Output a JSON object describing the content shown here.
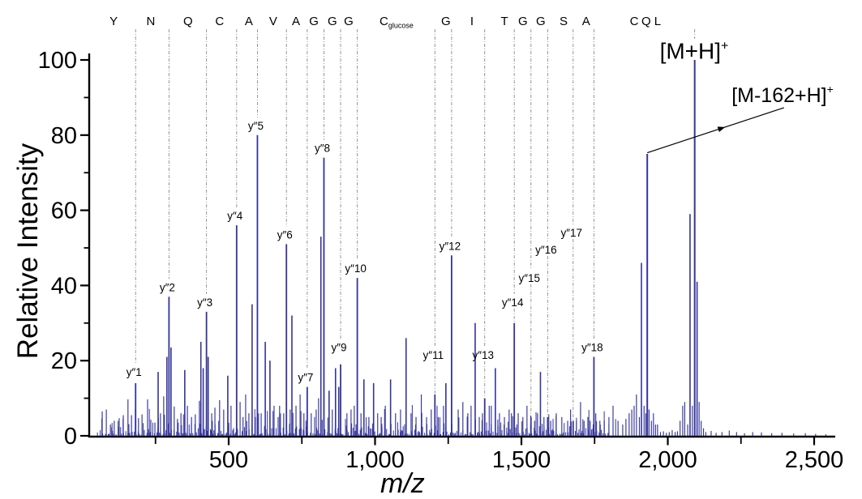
{
  "chart_data": {
    "type": "stick-mass-spectrum",
    "title": "",
    "xlabel": "m/z",
    "ylabel": "Relative Intensity",
    "xlim": [
      23,
      2570
    ],
    "ylim": [
      0,
      100
    ],
    "grid": false,
    "colors": {
      "peak": "#34349c",
      "axis": "#000000",
      "guide": "#8a8a8a",
      "text": "#000000"
    },
    "x_ticks": {
      "major": [
        500,
        1000,
        1500,
        2000,
        2500
      ],
      "major_labels": [
        "500",
        "1,000",
        "1,500",
        "2,000",
        "2,500"
      ],
      "minor": [
        250,
        750,
        1250,
        1750,
        2250
      ]
    },
    "y_ticks": {
      "major": [
        0,
        20,
        40,
        60,
        80,
        100
      ],
      "major_labels": [
        "0",
        "20",
        "40",
        "60",
        "80",
        "100"
      ],
      "minor": [
        10,
        30,
        50,
        70,
        90
      ]
    },
    "sequence": [
      {
        "t": "Y",
        "mz": 107
      },
      {
        "t": "N",
        "mz": 234
      },
      {
        "t": "Q",
        "mz": 361
      },
      {
        "t": "C",
        "mz": 469
      },
      {
        "t": "A",
        "mz": 569
      },
      {
        "t": "V",
        "mz": 652
      },
      {
        "t": "A",
        "mz": 730
      },
      {
        "t": "G",
        "mz": 791
      },
      {
        "t": "G",
        "mz": 854
      },
      {
        "t": "G",
        "mz": 910
      },
      {
        "t": "C",
        "sub": "glucose",
        "mz": 1032
      },
      {
        "t": "G",
        "mz": 1242
      },
      {
        "t": "I",
        "mz": 1331
      },
      {
        "t": "T",
        "mz": 1442
      },
      {
        "t": "G",
        "mz": 1505
      },
      {
        "t": "G",
        "mz": 1566
      },
      {
        "t": "S",
        "mz": 1644
      },
      {
        "t": "A",
        "mz": 1721
      },
      {
        "t": "C",
        "mz": 1885
      },
      {
        "t": "Q",
        "mz": 1926
      },
      {
        "t": "L",
        "mz": 1965
      }
    ],
    "annotated_peaks": [
      {
        "label": "y″1",
        "mz": 182.1,
        "intensity": 14,
        "label_int": 16
      },
      {
        "label": "y″2",
        "mz": 296.1,
        "intensity": 37,
        "label_int": 38.5
      },
      {
        "label": "y″3",
        "mz": 424.2,
        "intensity": 33,
        "label_int": 34.5
      },
      {
        "label": "y″4",
        "mz": 527.2,
        "intensity": 56,
        "label_int": 57.5
      },
      {
        "label": "y″5",
        "mz": 598.2,
        "intensity": 80,
        "label_int": 81.5
      },
      {
        "label": "y″6",
        "mz": 697.3,
        "intensity": 51,
        "label_int": 52.5
      },
      {
        "label": "y″7",
        "mz": 768.3,
        "intensity": 13,
        "label_int": 14.5
      },
      {
        "label": "y″8",
        "mz": 825.4,
        "intensity": 74,
        "label_int": 75.5
      },
      {
        "label": "y″9",
        "mz": 882.4,
        "intensity": 19,
        "label_int": 22.5
      },
      {
        "label": "y″10",
        "mz": 939.4,
        "intensity": 42,
        "label_int": 43.5
      },
      {
        "label": "y″11",
        "mz": 1204.5,
        "intensity": 11,
        "label_int": 20.5
      },
      {
        "label": "y″12",
        "mz": 1261.5,
        "intensity": 48,
        "label_int": 49.5
      },
      {
        "label": "y″13",
        "mz": 1374.6,
        "intensity": 10,
        "label_int": 20.5
      },
      {
        "label": "y″14",
        "mz": 1475.6,
        "intensity": 30,
        "label_int": 34.5
      },
      {
        "label": "y″15",
        "mz": 1532.6,
        "intensity": 5,
        "label_int": 41
      },
      {
        "label": "y″16",
        "mz": 1589.7,
        "intensity": 5,
        "label_int": 48.5
      },
      {
        "label": "y″17",
        "mz": 1676.7,
        "intensity": 4,
        "label_int": 53
      },
      {
        "label": "y″18",
        "mz": 1747.7,
        "intensity": 21,
        "label_int": 22.5
      }
    ],
    "parent_ions": [
      {
        "label_main": "[M+H]",
        "label_sup": "+",
        "mz": 2091.9,
        "intensity": 100,
        "label_center_mz": 2090,
        "label_baseline_int": 100.3,
        "guide_stub": true
      },
      {
        "label_main": "[M-162+H]",
        "label_sup": "+",
        "mz": 1929.9,
        "intensity": 75,
        "label_center_mz": 2392,
        "label_baseline_int": 88.8,
        "guide_stub": false,
        "arrow": {
          "from_mz": 1929.9,
          "from_int": 75.3,
          "to_mz": 2397,
          "to_int": 87.3
        }
      }
    ],
    "background_peaks": [
      [
        68,
        6.5
      ],
      [
        82,
        7
      ],
      [
        96,
        3
      ],
      [
        109,
        4
      ],
      [
        126,
        4.7
      ],
      [
        140,
        5.5
      ],
      [
        156,
        9.7
      ],
      [
        168,
        5.5
      ],
      [
        192,
        4.7
      ],
      [
        204,
        5.7
      ],
      [
        223,
        9.7
      ],
      [
        234,
        4.3
      ],
      [
        248,
        3.5
      ],
      [
        259,
        17
      ],
      [
        267,
        6
      ],
      [
        278,
        10.5
      ],
      [
        289,
        21
      ],
      [
        303,
        23.5
      ],
      [
        314,
        7.8
      ],
      [
        325,
        4.5
      ],
      [
        337,
        6
      ],
      [
        350,
        17.5
      ],
      [
        359,
        8
      ],
      [
        373,
        5
      ],
      [
        386,
        5.7
      ],
      [
        400,
        9.3
      ],
      [
        405,
        25
      ],
      [
        413,
        18
      ],
      [
        430,
        21
      ],
      [
        442,
        6
      ],
      [
        453,
        7.5
      ],
      [
        469,
        9.5
      ],
      [
        483,
        7
      ],
      [
        497,
        16
      ],
      [
        508,
        8
      ],
      [
        539,
        9
      ],
      [
        549,
        5
      ],
      [
        558,
        11
      ],
      [
        569,
        6
      ],
      [
        580,
        35
      ],
      [
        591,
        5
      ],
      [
        611,
        6
      ],
      [
        625,
        25
      ],
      [
        641,
        20
      ],
      [
        655,
        8
      ],
      [
        669,
        5
      ],
      [
        674,
        8
      ],
      [
        688,
        6
      ],
      [
        710,
        7
      ],
      [
        716,
        32
      ],
      [
        730,
        8
      ],
      [
        744,
        11
      ],
      [
        757,
        6
      ],
      [
        782,
        6
      ],
      [
        799,
        7
      ],
      [
        807,
        10
      ],
      [
        815,
        53
      ],
      [
        843,
        12
      ],
      [
        854,
        7
      ],
      [
        865,
        18
      ],
      [
        876,
        13
      ],
      [
        904,
        6
      ],
      [
        918,
        7
      ],
      [
        929,
        8
      ],
      [
        952,
        6
      ],
      [
        962,
        15
      ],
      [
        979,
        5
      ],
      [
        995,
        14
      ],
      [
        1009,
        6
      ],
      [
        1021,
        5
      ],
      [
        1035,
        8
      ],
      [
        1053,
        15
      ],
      [
        1070,
        6
      ],
      [
        1087,
        7
      ],
      [
        1106,
        26
      ],
      [
        1123,
        6
      ],
      [
        1140,
        5
      ],
      [
        1158,
        11
      ],
      [
        1176,
        5
      ],
      [
        1192,
        7
      ],
      [
        1216,
        5
      ],
      [
        1234,
        8
      ],
      [
        1242,
        14
      ],
      [
        1284,
        7
      ],
      [
        1300,
        9
      ],
      [
        1317,
        6
      ],
      [
        1328,
        8
      ],
      [
        1342,
        30
      ],
      [
        1356,
        5
      ],
      [
        1367,
        6
      ],
      [
        1390,
        8
      ],
      [
        1397,
        8
      ],
      [
        1411,
        18
      ],
      [
        1425,
        6
      ],
      [
        1442,
        5
      ],
      [
        1458,
        7
      ],
      [
        1466,
        6
      ],
      [
        1489,
        6
      ],
      [
        1505,
        5
      ],
      [
        1519,
        8
      ],
      [
        1545,
        4
      ],
      [
        1555,
        6
      ],
      [
        1565,
        17
      ],
      [
        1577,
        5
      ],
      [
        1600,
        4
      ],
      [
        1619,
        6
      ],
      [
        1638,
        5
      ],
      [
        1658,
        4
      ],
      [
        1668,
        7
      ],
      [
        1688,
        4
      ],
      [
        1702,
        9
      ],
      [
        1714,
        4
      ],
      [
        1727,
        5
      ],
      [
        1735,
        4
      ],
      [
        1754,
        6
      ],
      [
        1768,
        4
      ],
      [
        1783,
        4
      ],
      [
        1799,
        5
      ],
      [
        1813,
        8
      ],
      [
        1830,
        4
      ],
      [
        1846,
        3
      ],
      [
        1857,
        4.5
      ],
      [
        1868,
        6
      ],
      [
        1877,
        7
      ],
      [
        1885,
        8
      ],
      [
        1893,
        11
      ],
      [
        1903,
        5
      ],
      [
        1910,
        46
      ],
      [
        1919,
        8
      ],
      [
        1925,
        6
      ],
      [
        1936,
        7
      ],
      [
        1944,
        4
      ],
      [
        1951,
        6
      ],
      [
        1958,
        3
      ],
      [
        1965,
        3
      ],
      [
        1975,
        1
      ],
      [
        1985,
        1.2
      ],
      [
        1995,
        0.8
      ],
      [
        2005,
        1
      ],
      [
        2015,
        1.5
      ],
      [
        2025,
        1
      ],
      [
        2033,
        1.2
      ],
      [
        2042,
        4
      ],
      [
        2051,
        8
      ],
      [
        2058,
        9
      ],
      [
        2068,
        3
      ],
      [
        2076,
        59
      ],
      [
        2084,
        8
      ],
      [
        2100,
        41
      ],
      [
        2107,
        9
      ],
      [
        2114,
        4
      ],
      [
        2122,
        2
      ],
      [
        2130,
        1
      ],
      [
        2148,
        1.3
      ],
      [
        2165,
        0.8
      ],
      [
        2185,
        1
      ],
      [
        2210,
        1.4
      ],
      [
        2235,
        1
      ],
      [
        2262,
        0.7
      ],
      [
        2290,
        1
      ],
      [
        2320,
        0.9
      ],
      [
        2355,
        0.7
      ],
      [
        2390,
        0.8
      ],
      [
        2430,
        0.6
      ],
      [
        2470,
        0.7
      ],
      [
        2505,
        0.5
      ],
      [
        2540,
        0.4
      ]
    ],
    "noise": {
      "seed": 7,
      "grass": {
        "mz_start": 45,
        "mz_end": 1790,
        "step_min": 2.5,
        "step_rand": 7,
        "int_min": 0.4,
        "int_rand": 3.1
      },
      "medium": {
        "mz_start": 50,
        "mz_end": 1810,
        "step_min": 9,
        "step_rand": 26,
        "int_min": 3,
        "int_rand": 6
      }
    }
  }
}
